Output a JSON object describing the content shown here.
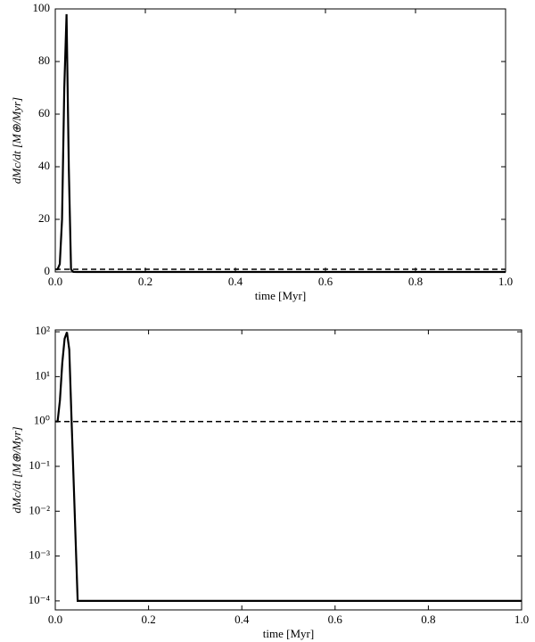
{
  "chart_data": [
    {
      "type": "line",
      "xlabel": "time [Myr]",
      "ylabel": "dMc/dt [M⊕/Myr]",
      "log_y": false,
      "xlim": [
        0,
        1
      ],
      "xticks": [
        {
          "value": 0,
          "label": "0.0"
        },
        0.2,
        0.4,
        0.6,
        0.8,
        {
          "value": 1,
          "label": "1.0"
        }
      ],
      "ylim": [
        0,
        100
      ],
      "yticks": [
        0,
        20,
        40,
        60,
        80,
        100
      ],
      "series": [
        {
          "color": "#000000",
          "dash": false,
          "x": [
            0,
            0.005,
            0.01,
            0.015,
            0.02,
            0.025,
            0.03,
            0.035,
            0.04,
            0.048,
            0.1,
            1.0
          ],
          "values": [
            1,
            1,
            3,
            20,
            70,
            98,
            40,
            1,
            0.03,
            0.0001,
            0.0001,
            0.0001
          ]
        },
        {
          "color": "#000000",
          "dash": true,
          "x": [
            0,
            1
          ],
          "values": [
            1,
            1
          ]
        }
      ]
    },
    {
      "type": "line",
      "xlabel": "time [Myr]",
      "ylabel": "dMc/dt [M⊕/Myr]",
      "log_y": true,
      "xlim": [
        0,
        1
      ],
      "xticks": [
        {
          "value": 0,
          "label": "0.0"
        },
        0.2,
        0.4,
        0.6,
        0.8,
        {
          "value": 1,
          "label": "1.0"
        }
      ],
      "ylim": [
        6.3e-05,
        110
      ],
      "yticks": [
        {
          "value": 0.0001,
          "label": "10⁻⁴"
        },
        {
          "value": 0.001,
          "label": "10⁻³"
        },
        {
          "value": 0.01,
          "label": "10⁻²"
        },
        {
          "value": 0.1,
          "label": "10⁻¹"
        },
        {
          "value": 1,
          "label": "10⁰"
        },
        {
          "value": 10,
          "label": "10¹"
        },
        {
          "value": 100,
          "label": "10²"
        }
      ],
      "series": [
        {
          "color": "#000000",
          "dash": false,
          "x": [
            0,
            0.005,
            0.01,
            0.015,
            0.02,
            0.025,
            0.03,
            0.035,
            0.04,
            0.048,
            0.1,
            1.0
          ],
          "values": [
            1,
            1,
            3,
            20,
            70,
            98,
            40,
            1,
            0.03,
            0.0001,
            0.0001,
            0.0001
          ]
        },
        {
          "color": "#000000",
          "dash": true,
          "x": [
            0,
            1
          ],
          "values": [
            1,
            1
          ]
        }
      ]
    }
  ]
}
